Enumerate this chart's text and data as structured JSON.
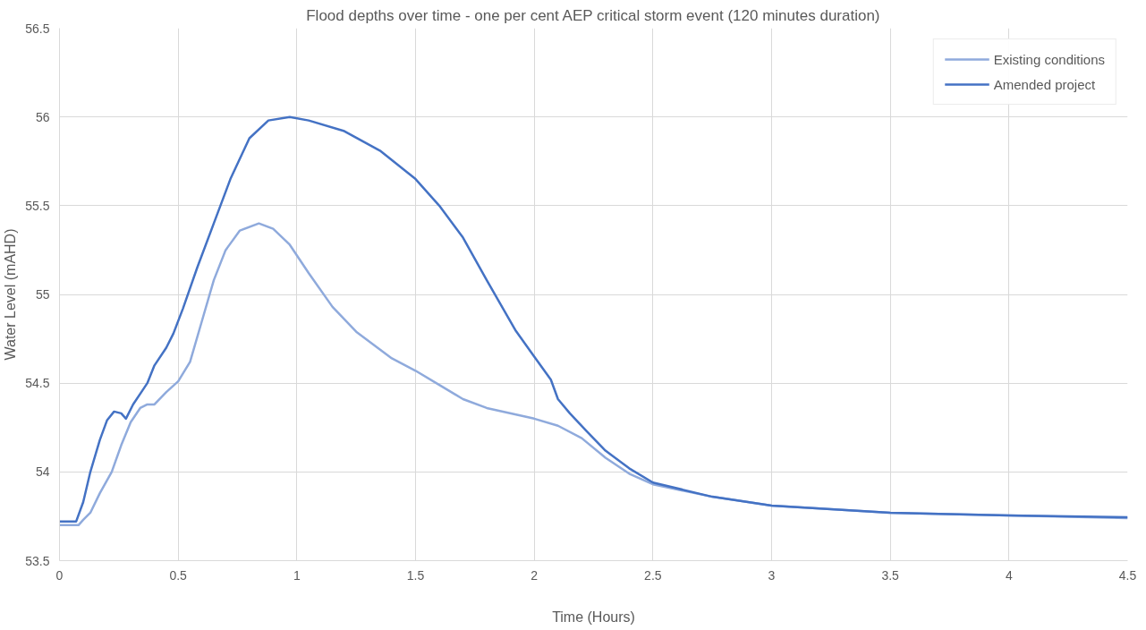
{
  "chart_data": {
    "type": "line",
    "title": "Flood depths over time - one per cent AEP critical storm event (120 minutes duration)",
    "xlabel": "Time (Hours)",
    "ylabel": "Water Level (mAHD)",
    "xlim": [
      0,
      4.5
    ],
    "xticks": [
      0,
      0.5,
      1,
      1.5,
      2,
      2.5,
      3,
      3.5,
      4,
      4.5
    ],
    "ylim": [
      53.5,
      56.5
    ],
    "yticks": [
      53.5,
      54,
      54.5,
      55,
      55.5,
      56,
      56.5
    ],
    "grid": true,
    "legend": "top right",
    "marker": "none",
    "line_style": "solid",
    "series": [
      {
        "name": "Existing conditions",
        "color": "#8faadc",
        "x": [
          0,
          0.08,
          0.1,
          0.13,
          0.17,
          0.22,
          0.26,
          0.3,
          0.34,
          0.37,
          0.4,
          0.45,
          0.5,
          0.55,
          0.6,
          0.65,
          0.7,
          0.76,
          0.84,
          0.9,
          0.97,
          1.05,
          1.15,
          1.25,
          1.4,
          1.5,
          1.6,
          1.7,
          1.8,
          2.0,
          2.1,
          2.2,
          2.3,
          2.4,
          2.5,
          2.75,
          3,
          3.5,
          4,
          4.5
        ],
        "values": [
          53.7,
          53.7,
          53.73,
          53.77,
          53.88,
          54.0,
          54.15,
          54.28,
          54.36,
          54.38,
          54.38,
          54.45,
          54.51,
          54.62,
          54.85,
          55.08,
          55.25,
          55.36,
          55.4,
          55.37,
          55.28,
          55.12,
          54.93,
          54.79,
          54.64,
          54.57,
          54.49,
          54.41,
          54.36,
          54.3,
          54.26,
          54.19,
          54.08,
          53.99,
          53.93,
          53.86,
          53.81,
          53.77,
          53.755,
          53.74
        ]
      },
      {
        "name": "Amended project",
        "color": "#4472c4",
        "x": [
          0,
          0.07,
          0.1,
          0.13,
          0.17,
          0.2,
          0.23,
          0.26,
          0.28,
          0.31,
          0.35,
          0.37,
          0.4,
          0.45,
          0.48,
          0.52,
          0.58,
          0.65,
          0.72,
          0.8,
          0.88,
          0.97,
          1.05,
          1.2,
          1.35,
          1.5,
          1.6,
          1.7,
          1.8,
          1.92,
          2.0,
          2.07,
          2.1,
          2.15,
          2.22,
          2.3,
          2.4,
          2.5,
          2.75,
          3,
          3.5,
          4,
          4.5
        ],
        "values": [
          53.72,
          53.72,
          53.83,
          54.0,
          54.18,
          54.29,
          54.34,
          54.33,
          54.3,
          54.38,
          54.46,
          54.5,
          54.6,
          54.7,
          54.78,
          54.92,
          55.15,
          55.4,
          55.65,
          55.88,
          55.98,
          56.0,
          55.98,
          55.92,
          55.81,
          55.65,
          55.5,
          55.32,
          55.08,
          54.8,
          54.65,
          54.52,
          54.41,
          54.33,
          54.23,
          54.12,
          54.02,
          53.94,
          53.86,
          53.81,
          53.77,
          53.755,
          53.745
        ]
      }
    ]
  }
}
